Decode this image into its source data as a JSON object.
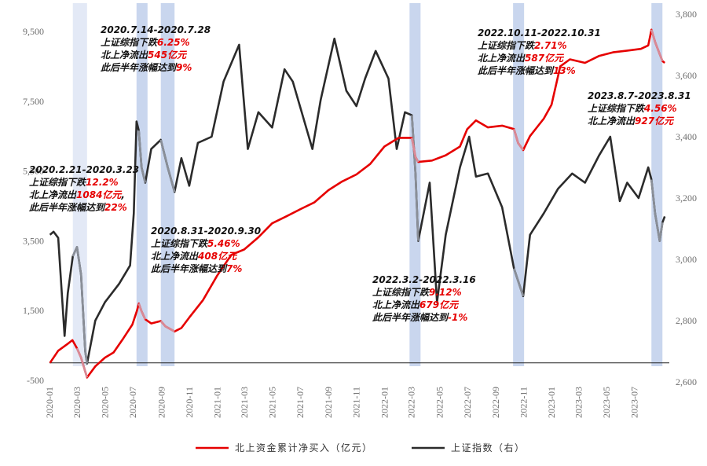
{
  "chart_data": {
    "type": "line",
    "title": "",
    "x_tick_labels": [
      "2020-01",
      "2020-03",
      "2020-05",
      "2020-07",
      "2020-09",
      "2020-11",
      "2021-01",
      "2021-03",
      "2021-05",
      "2021-07",
      "2021-09",
      "2021-11",
      "2022-01",
      "2022-03",
      "2022-05",
      "2022-07",
      "2022-09",
      "2022-11",
      "2023-01",
      "2023-03",
      "2023-05",
      "2023-07"
    ],
    "y_left": {
      "ticks": [
        "-500",
        "1,500",
        "3,500",
        "5,500",
        "7,500",
        "9,500"
      ],
      "range": [
        -500,
        10000
      ]
    },
    "y_right": {
      "ticks": [
        "2,600",
        "2,800",
        "3,000",
        "3,200",
        "3,400",
        "3,600",
        "3,800"
      ],
      "range": [
        2600,
        3800
      ]
    },
    "x_range": [
      "2020-01-01",
      "2023-09-15"
    ],
    "legend_position": "bottom",
    "series": [
      {
        "name": "北上资金累计净买入（亿元）",
        "axis": "left",
        "color": "#e60000",
        "points": [
          [
            "2020-01-02",
            0
          ],
          [
            "2020-01-20",
            350
          ],
          [
            "2020-02-10",
            550
          ],
          [
            "2020-02-20",
            650
          ],
          [
            "2020-03-01",
            420
          ],
          [
            "2020-03-10",
            150
          ],
          [
            "2020-03-23",
            -420
          ],
          [
            "2020-04-10",
            -100
          ],
          [
            "2020-05-01",
            150
          ],
          [
            "2020-05-20",
            300
          ],
          [
            "2020-06-10",
            700
          ],
          [
            "2020-06-30",
            1100
          ],
          [
            "2020-07-10",
            1500
          ],
          [
            "2020-07-14",
            1700
          ],
          [
            "2020-07-20",
            1480
          ],
          [
            "2020-07-28",
            1250
          ],
          [
            "2020-08-10",
            1130
          ],
          [
            "2020-08-31",
            1200
          ],
          [
            "2020-09-10",
            1050
          ],
          [
            "2020-09-30",
            900
          ],
          [
            "2020-10-15",
            1000
          ],
          [
            "2020-11-01",
            1300
          ],
          [
            "2020-12-01",
            1800
          ],
          [
            "2021-01-01",
            2500
          ],
          [
            "2021-02-01",
            3100
          ],
          [
            "2021-03-01",
            3250
          ],
          [
            "2021-04-01",
            3600
          ],
          [
            "2021-05-01",
            4000
          ],
          [
            "2021-06-01",
            4200
          ],
          [
            "2021-07-01",
            4400
          ],
          [
            "2021-08-01",
            4600
          ],
          [
            "2021-09-01",
            4950
          ],
          [
            "2021-10-01",
            5200
          ],
          [
            "2021-11-01",
            5400
          ],
          [
            "2021-12-01",
            5700
          ],
          [
            "2022-01-01",
            6200
          ],
          [
            "2022-02-01",
            6450
          ],
          [
            "2022-03-02",
            6450
          ],
          [
            "2022-03-10",
            5900
          ],
          [
            "2022-03-16",
            5760
          ],
          [
            "2022-04-15",
            5800
          ],
          [
            "2022-05-15",
            5950
          ],
          [
            "2022-06-15",
            6200
          ],
          [
            "2022-07-01",
            6700
          ],
          [
            "2022-07-20",
            6950
          ],
          [
            "2022-08-15",
            6750
          ],
          [
            "2022-09-15",
            6800
          ],
          [
            "2022-10-11",
            6700
          ],
          [
            "2022-10-20",
            6300
          ],
          [
            "2022-10-31",
            6100
          ],
          [
            "2022-11-15",
            6500
          ],
          [
            "2022-12-15",
            7000
          ],
          [
            "2023-01-01",
            7400
          ],
          [
            "2023-01-20",
            8500
          ],
          [
            "2023-02-10",
            8700
          ],
          [
            "2023-03-15",
            8600
          ],
          [
            "2023-04-15",
            8800
          ],
          [
            "2023-05-15",
            8900
          ],
          [
            "2023-06-15",
            8950
          ],
          [
            "2023-07-15",
            9000
          ],
          [
            "2023-07-31",
            9100
          ],
          [
            "2023-08-07",
            9550
          ],
          [
            "2023-08-15",
            9200
          ],
          [
            "2023-08-25",
            8850
          ],
          [
            "2023-08-31",
            8650
          ],
          [
            "2023-09-05",
            8600
          ]
        ]
      },
      {
        "name": "上证指数（右）",
        "axis": "right",
        "color": "#2b2b2b",
        "points": [
          [
            "2020-01-02",
            3080
          ],
          [
            "2020-01-10",
            3090
          ],
          [
            "2020-01-20",
            3070
          ],
          [
            "2020-02-03",
            2750
          ],
          [
            "2020-02-10",
            2890
          ],
          [
            "2020-02-21",
            3010
          ],
          [
            "2020-03-01",
            3040
          ],
          [
            "2020-03-10",
            2950
          ],
          [
            "2020-03-19",
            2700
          ],
          [
            "2020-03-23",
            2660
          ],
          [
            "2020-04-10",
            2800
          ],
          [
            "2020-05-01",
            2860
          ],
          [
            "2020-06-01",
            2920
          ],
          [
            "2020-06-25",
            2980
          ],
          [
            "2020-07-03",
            3150
          ],
          [
            "2020-07-09",
            3450
          ],
          [
            "2020-07-14",
            3420
          ],
          [
            "2020-07-20",
            3300
          ],
          [
            "2020-07-28",
            3250
          ],
          [
            "2020-08-10",
            3360
          ],
          [
            "2020-08-31",
            3390
          ],
          [
            "2020-09-15",
            3300
          ],
          [
            "2020-09-30",
            3220
          ],
          [
            "2020-10-15",
            3330
          ],
          [
            "2020-11-01",
            3240
          ],
          [
            "2020-11-20",
            3380
          ],
          [
            "2020-12-20",
            3400
          ],
          [
            "2021-01-15",
            3580
          ],
          [
            "2021-02-18",
            3700
          ],
          [
            "2021-03-09",
            3360
          ],
          [
            "2021-04-01",
            3480
          ],
          [
            "2021-05-01",
            3430
          ],
          [
            "2021-05-28",
            3620
          ],
          [
            "2021-06-15",
            3580
          ],
          [
            "2021-07-28",
            3360
          ],
          [
            "2021-08-15",
            3520
          ],
          [
            "2021-09-14",
            3720
          ],
          [
            "2021-10-10",
            3550
          ],
          [
            "2021-11-01",
            3500
          ],
          [
            "2021-11-20",
            3590
          ],
          [
            "2021-12-13",
            3680
          ],
          [
            "2022-01-10",
            3590
          ],
          [
            "2022-01-28",
            3360
          ],
          [
            "2022-02-15",
            3480
          ],
          [
            "2022-03-02",
            3470
          ],
          [
            "2022-03-10",
            3280
          ],
          [
            "2022-03-16",
            3060
          ],
          [
            "2022-04-10",
            3250
          ],
          [
            "2022-04-26",
            2860
          ],
          [
            "2022-05-15",
            3080
          ],
          [
            "2022-06-15",
            3300
          ],
          [
            "2022-07-05",
            3400
          ],
          [
            "2022-07-20",
            3270
          ],
          [
            "2022-08-15",
            3280
          ],
          [
            "2022-09-15",
            3170
          ],
          [
            "2022-10-11",
            2970
          ],
          [
            "2022-10-31",
            2880
          ],
          [
            "2022-11-15",
            3080
          ],
          [
            "2022-12-15",
            3150
          ],
          [
            "2023-01-15",
            3230
          ],
          [
            "2023-02-15",
            3280
          ],
          [
            "2023-03-15",
            3250
          ],
          [
            "2023-04-15",
            3340
          ],
          [
            "2023-05-09",
            3400
          ],
          [
            "2023-05-30",
            3190
          ],
          [
            "2023-06-15",
            3250
          ],
          [
            "2023-07-10",
            3200
          ],
          [
            "2023-07-31",
            3300
          ],
          [
            "2023-08-07",
            3260
          ],
          [
            "2023-08-15",
            3150
          ],
          [
            "2023-08-25",
            3060
          ],
          [
            "2023-08-31",
            3120
          ],
          [
            "2023-09-05",
            3140
          ]
        ]
      }
    ],
    "highlight_periods": [
      {
        "start": "2020-02-21",
        "end": "2020-03-23",
        "tint": "light"
      },
      {
        "start": "2020-07-14",
        "end": "2020-07-28",
        "tint": "dark"
      },
      {
        "start": "2020-08-31",
        "end": "2020-09-30",
        "tint": "dark"
      },
      {
        "start": "2022-03-02",
        "end": "2022-03-16",
        "tint": "dark"
      },
      {
        "start": "2022-10-11",
        "end": "2022-10-31",
        "tint": "dark"
      },
      {
        "start": "2023-08-07",
        "end": "2023-08-31",
        "tint": "dark"
      }
    ],
    "highlight_colors": {
      "light": "#e3e9f6",
      "dark": "#c9d6ee"
    },
    "annotations": [
      {
        "lines": [
          [
            {
              "t": "2020.2.21-2020.3.23",
              "c": "black"
            }
          ],
          [
            {
              "t": "上证综指下跌",
              "c": "black"
            },
            {
              "t": "12.2%",
              "c": "red"
            }
          ],
          [
            {
              "t": "北上净流出",
              "c": "black"
            },
            {
              "t": "1084亿元",
              "c": "red"
            },
            {
              "t": ",",
              "c": "black"
            }
          ],
          [
            {
              "t": "此后半年涨幅达到",
              "c": "black"
            },
            {
              "t": "22%",
              "c": "red"
            }
          ]
        ]
      },
      {
        "lines": [
          [
            {
              "t": "2020.7.14-2020.7.28",
              "c": "black"
            }
          ],
          [
            {
              "t": "上证综指下跌",
              "c": "black"
            },
            {
              "t": "6.25%",
              "c": "red"
            }
          ],
          [
            {
              "t": "北上净流出",
              "c": "black"
            },
            {
              "t": "545亿元",
              "c": "red"
            }
          ],
          [
            {
              "t": "此后半年涨幅达到",
              "c": "black"
            },
            {
              "t": "9%",
              "c": "red"
            }
          ]
        ]
      },
      {
        "lines": [
          [
            {
              "t": "2020.8.31-2020.9.30",
              "c": "black"
            }
          ],
          [
            {
              "t": "上证综指下跌",
              "c": "black"
            },
            {
              "t": "5.46%",
              "c": "red"
            }
          ],
          [
            {
              "t": "北上净流出",
              "c": "black"
            },
            {
              "t": "408亿元",
              "c": "red"
            }
          ],
          [
            {
              "t": "此后半年涨幅达到",
              "c": "black"
            },
            {
              "t": "7%",
              "c": "red"
            }
          ]
        ]
      },
      {
        "lines": [
          [
            {
              "t": "2022.3.2-2022.3.16",
              "c": "black"
            }
          ],
          [
            {
              "t": "上证综指下跌",
              "c": "black"
            },
            {
              "t": "9.12%",
              "c": "red"
            }
          ],
          [
            {
              "t": "北上净流出",
              "c": "black"
            },
            {
              "t": "679亿元",
              "c": "red"
            }
          ],
          [
            {
              "t": "此后半年涨幅达到",
              "c": "black"
            },
            {
              "t": "-1%",
              "c": "red"
            }
          ]
        ]
      },
      {
        "lines": [
          [
            {
              "t": "2022.10.11-2022.10.31",
              "c": "black"
            }
          ],
          [
            {
              "t": "上证综指下跌",
              "c": "black"
            },
            {
              "t": "2.71%",
              "c": "red"
            }
          ],
          [
            {
              "t": "北上净流出",
              "c": "black"
            },
            {
              "t": "587亿元",
              "c": "red"
            }
          ],
          [
            {
              "t": "此后半年涨幅达到",
              "c": "black"
            },
            {
              "t": "13%",
              "c": "red"
            }
          ]
        ]
      },
      {
        "lines": [
          [
            {
              "t": "2023.8.7-2023.8.31",
              "c": "black"
            }
          ],
          [
            {
              "t": "上证综指下跌",
              "c": "black"
            },
            {
              "t": "4.56%",
              "c": "red"
            }
          ],
          [
            {
              "t": "北上净流出",
              "c": "black"
            },
            {
              "t": "927亿元",
              "c": "red"
            }
          ]
        ]
      }
    ]
  }
}
